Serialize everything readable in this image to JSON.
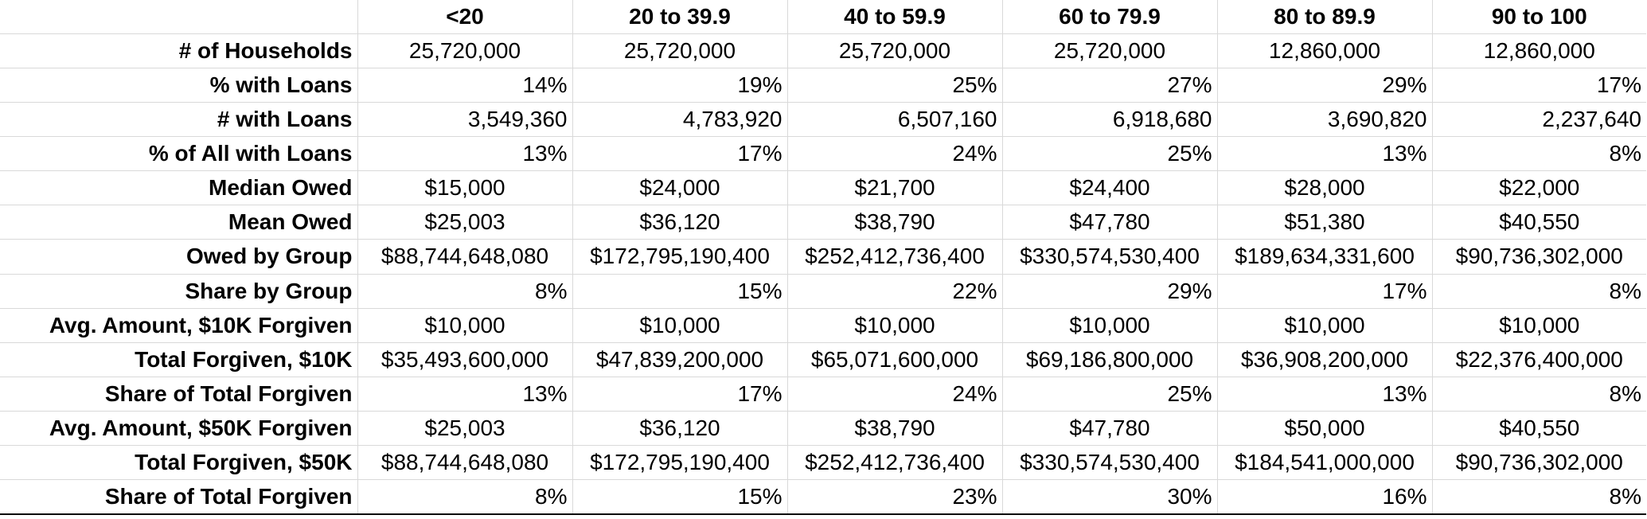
{
  "columns": [
    "<20",
    "20 to 39.9",
    "40 to 59.9",
    "60 to 79.9",
    "80 to 89.9",
    "90 to 100"
  ],
  "rows": [
    {
      "label": "# of Households",
      "align": "center",
      "values": [
        "25,720,000",
        "25,720,000",
        "25,720,000",
        "25,720,000",
        "12,860,000",
        "12,860,000"
      ]
    },
    {
      "label": "% with Loans",
      "align": "right",
      "values": [
        "14%",
        "19%",
        "25%",
        "27%",
        "29%",
        "17%"
      ]
    },
    {
      "label": "# with Loans",
      "align": "right",
      "values": [
        "3,549,360",
        "4,783,920",
        "6,507,160",
        "6,918,680",
        "3,690,820",
        "2,237,640"
      ]
    },
    {
      "label": "% of All with Loans",
      "align": "right",
      "values": [
        "13%",
        "17%",
        "24%",
        "25%",
        "13%",
        "8%"
      ]
    },
    {
      "label": "Median Owed",
      "align": "center",
      "values": [
        "$15,000",
        "$24,000",
        "$21,700",
        "$24,400",
        "$28,000",
        "$22,000"
      ]
    },
    {
      "label": "Mean Owed",
      "align": "center",
      "values": [
        "$25,003",
        "$36,120",
        "$38,790",
        "$47,780",
        "$51,380",
        "$40,550"
      ]
    },
    {
      "label": "Owed by Group",
      "align": "center",
      "values": [
        "$88,744,648,080",
        "$172,795,190,400",
        "$252,412,736,400",
        "$330,574,530,400",
        "$189,634,331,600",
        "$90,736,302,000"
      ]
    },
    {
      "label": "Share by Group",
      "align": "right",
      "values": [
        "8%",
        "15%",
        "22%",
        "29%",
        "17%",
        "8%"
      ]
    },
    {
      "label": "Avg. Amount, $10K Forgiven",
      "align": "center",
      "values": [
        "$10,000",
        "$10,000",
        "$10,000",
        "$10,000",
        "$10,000",
        "$10,000"
      ]
    },
    {
      "label": "Total Forgiven, $10K",
      "align": "center",
      "values": [
        "$35,493,600,000",
        "$47,839,200,000",
        "$65,071,600,000",
        "$69,186,800,000",
        "$36,908,200,000",
        "$22,376,400,000"
      ]
    },
    {
      "label": "Share of Total Forgiven",
      "align": "right",
      "values": [
        "13%",
        "17%",
        "24%",
        "25%",
        "13%",
        "8%"
      ]
    },
    {
      "label": "Avg. Amount, $50K Forgiven",
      "align": "center",
      "values": [
        "$25,003",
        "$36,120",
        "$38,790",
        "$47,780",
        "$50,000",
        "$40,550"
      ]
    },
    {
      "label": "Total Forgiven, $50K",
      "align": "center",
      "values": [
        "$88,744,648,080",
        "$172,795,190,400",
        "$252,412,736,400",
        "$330,574,530,400",
        "$184,541,000,000",
        "$90,736,302,000"
      ]
    },
    {
      "label": "Share of Total Forgiven",
      "align": "right",
      "values": [
        "8%",
        "15%",
        "23%",
        "30%",
        "16%",
        "8%"
      ]
    }
  ]
}
